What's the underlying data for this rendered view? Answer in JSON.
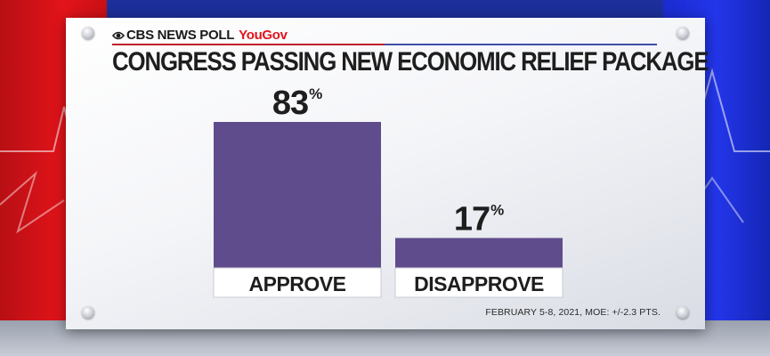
{
  "header": {
    "brand_cbs": "CBS NEWS POLL",
    "brand_partner": "YouGov",
    "title": "CONGRESS PASSING NEW ECONOMIC RELIEF PACKAGE"
  },
  "footnote": "FEBRUARY 5-8, 2021, MOE: +/-2.3 PTS.",
  "colors": {
    "bar": "#5f4c8c",
    "label_box": "#ffffff",
    "text": "#1e1e1e",
    "accent_red": "#e3141a",
    "accent_blue": "#2336ea"
  },
  "chart_data": {
    "type": "bar",
    "title": "CONGRESS PASSING NEW ECONOMIC RELIEF PACKAGE",
    "categories": [
      "APPROVE",
      "DISAPPROVE"
    ],
    "values": [
      83,
      17
    ],
    "value_suffix": "%",
    "ylim": [
      0,
      100
    ],
    "grid": false,
    "xlabel": "",
    "ylabel": ""
  }
}
